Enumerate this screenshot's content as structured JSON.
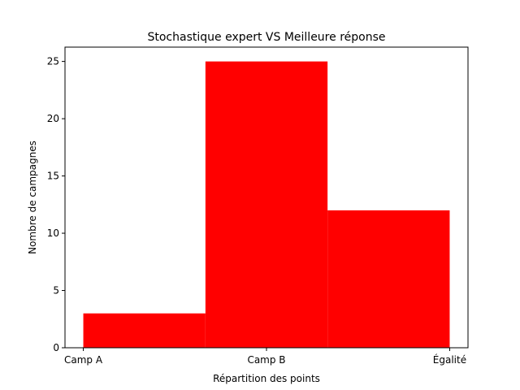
{
  "chart_data": {
    "type": "bar",
    "title": "Stochastique expert VS Meilleure réponse",
    "xlabel": "Répartition des points",
    "ylabel": "Nombre de campagnes",
    "categories": [
      "Camp A",
      "Camp B",
      "Égalité"
    ],
    "bins": [
      {
        "start": 0,
        "end": 0.6667,
        "value": 3
      },
      {
        "start": 0.6667,
        "end": 1.3333,
        "value": 25
      },
      {
        "start": 1.3333,
        "end": 2,
        "value": 12
      }
    ],
    "ylim": [
      0,
      26.25
    ],
    "xlim": [
      -0.1,
      2.1
    ],
    "yticks": [
      0,
      5,
      10,
      15,
      20,
      25
    ],
    "xtick_positions": [
      0,
      1,
      2
    ],
    "bar_color": "#ff0000",
    "grid": false,
    "legend": "none"
  }
}
